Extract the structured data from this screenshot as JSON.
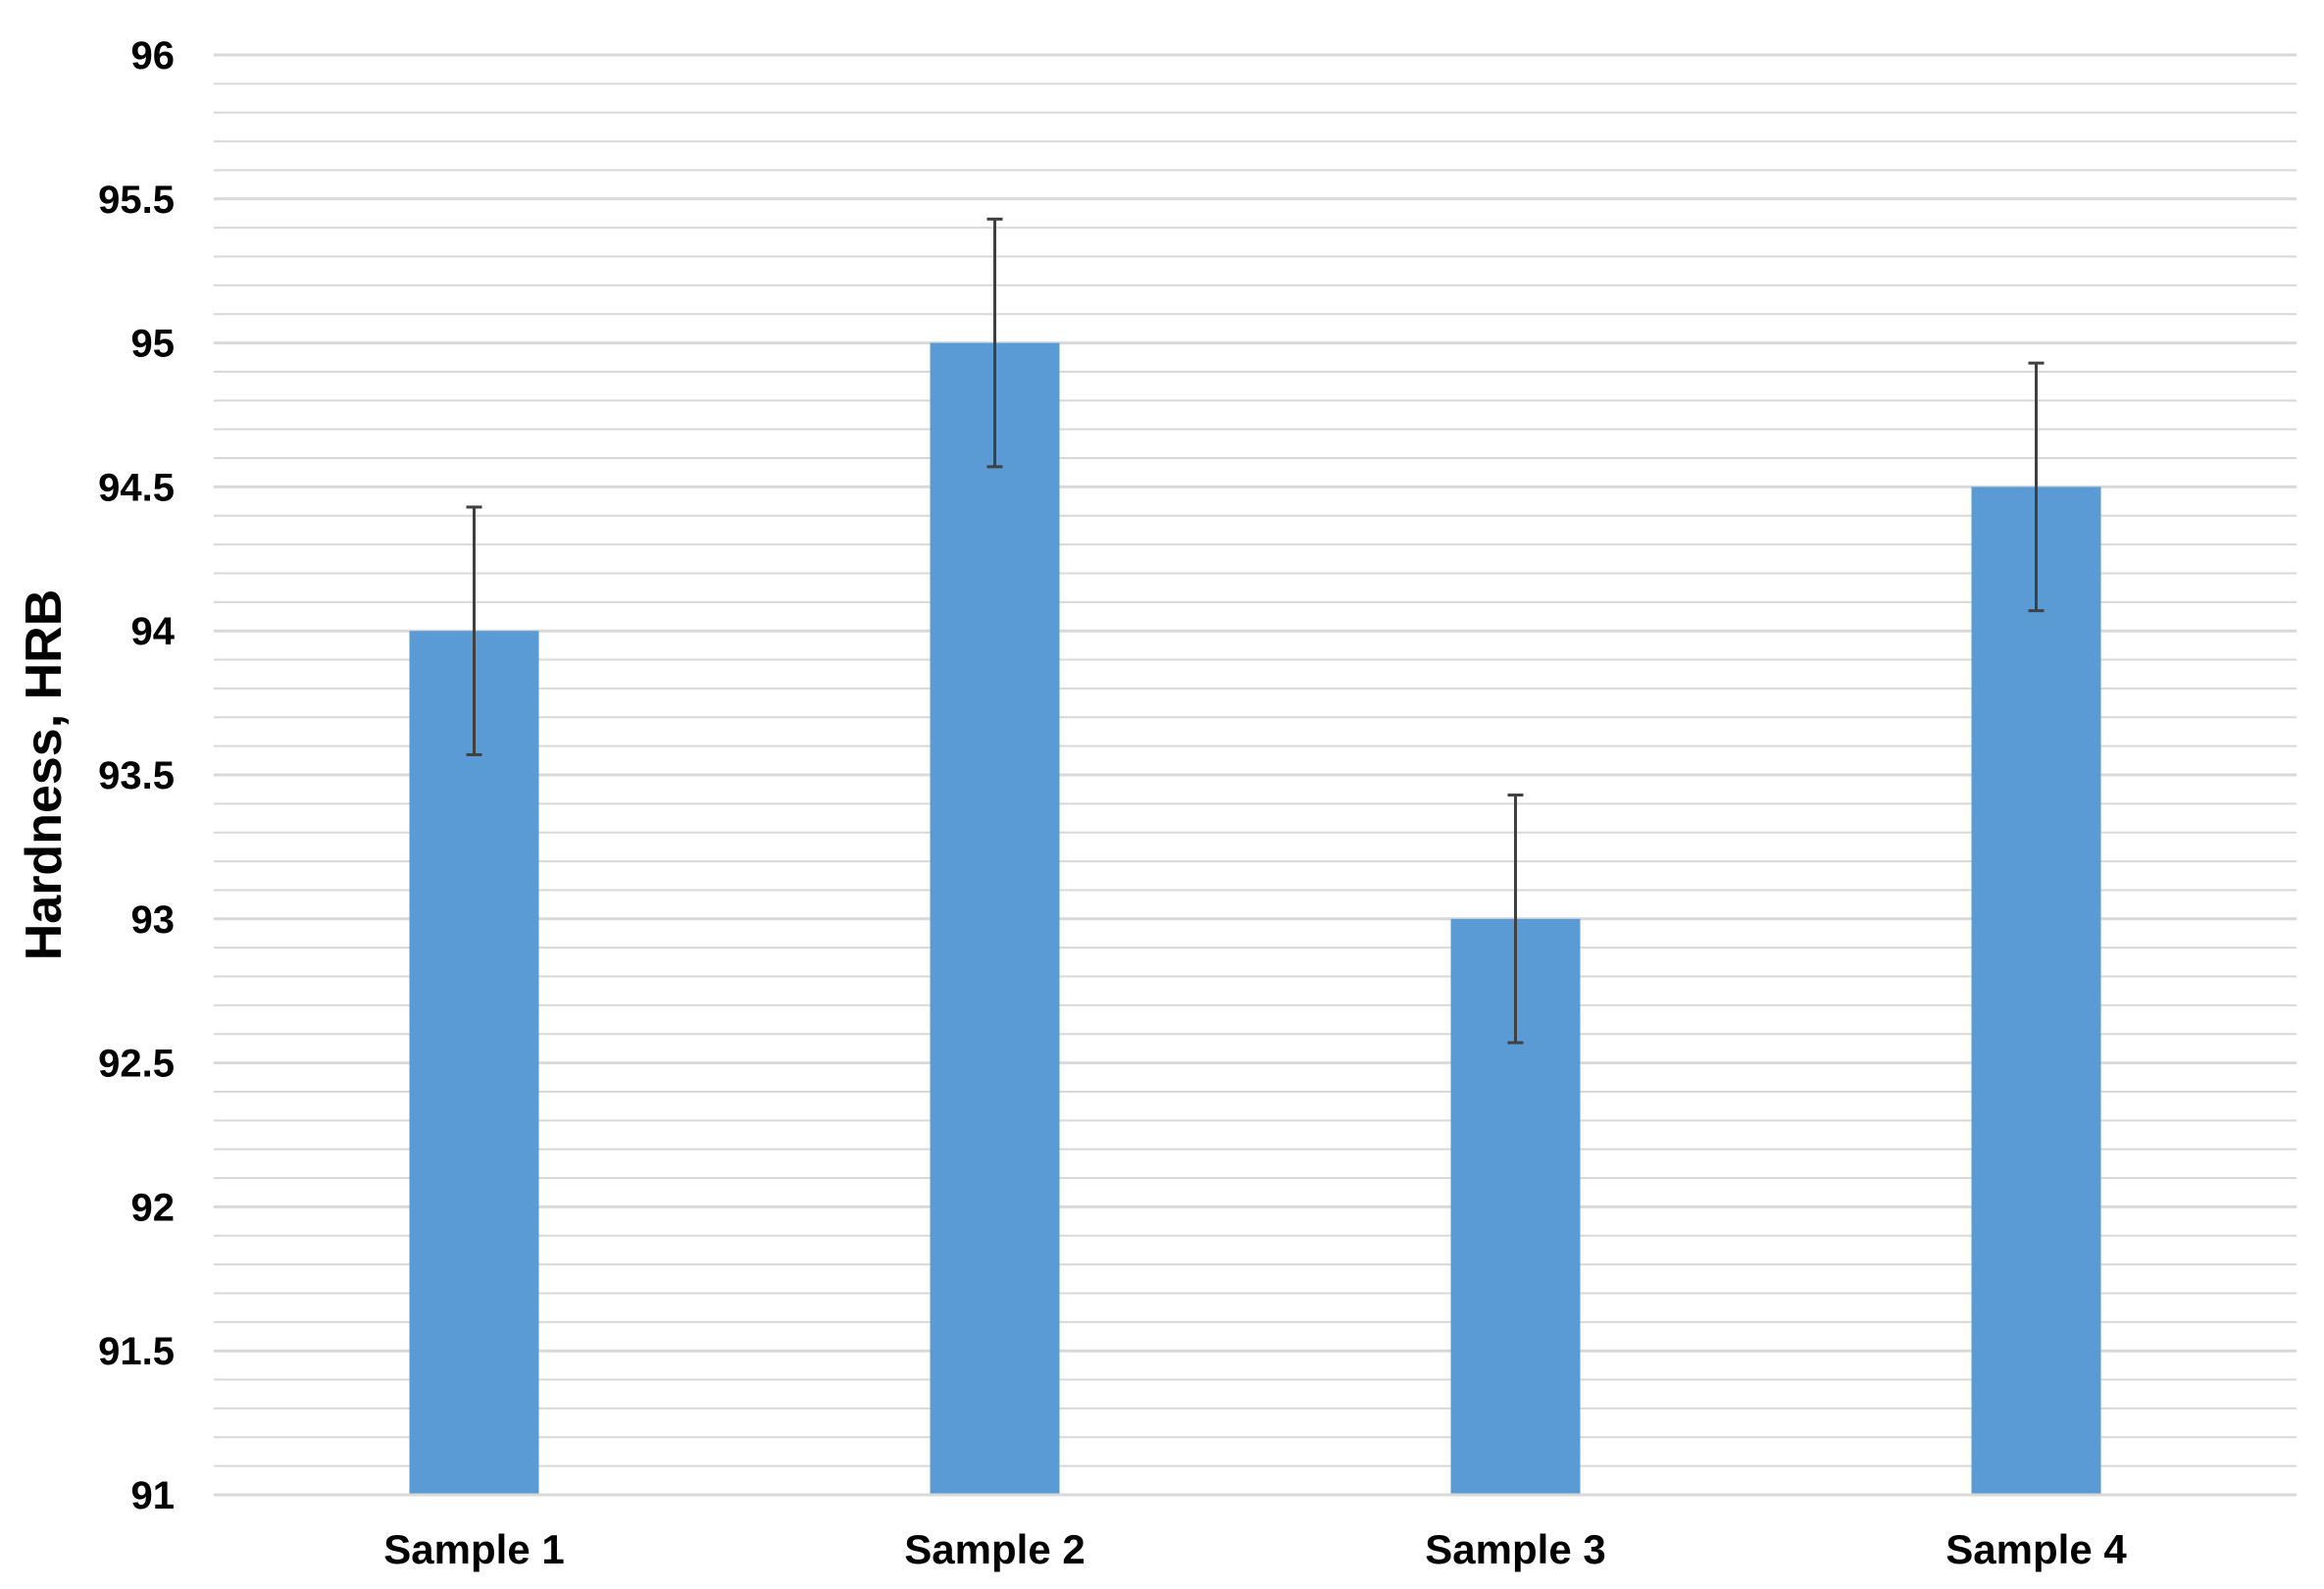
{
  "chart_data": {
    "type": "bar",
    "title": "",
    "xlabel": "",
    "ylabel": "Hardness,  HRB",
    "categories": [
      "Sample 1",
      "Sample 2",
      "Sample 3",
      "Sample 4"
    ],
    "values": [
      94,
      95,
      93,
      94.5
    ],
    "error": [
      0.43,
      0.43,
      0.43,
      0.43
    ],
    "ylim": [
      91,
      96
    ],
    "y_ticks": [
      "91",
      "91.5",
      "92",
      "92.5",
      "93",
      "93.5",
      "94",
      "94.5",
      "95",
      "95.5",
      "96"
    ],
    "y_tick_values": [
      91,
      91.5,
      92,
      92.5,
      93,
      93.5,
      94,
      94.5,
      95,
      95.5,
      96
    ],
    "minor_gridline_step": 0.1,
    "grid": true,
    "legend": "none",
    "colors": {
      "bar": "#5B9BD5",
      "error_bar": "#404040",
      "gridline": "#D9D9D9",
      "axis": "#D9D9D9"
    }
  }
}
